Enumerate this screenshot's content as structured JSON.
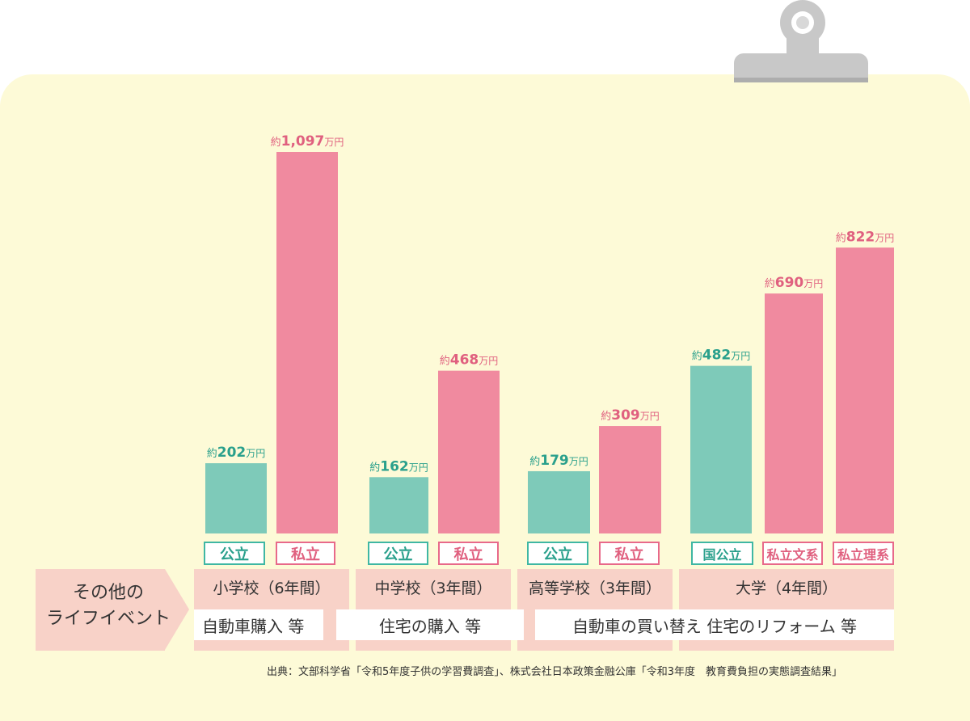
{
  "chart_data": {
    "type": "bar",
    "title": "",
    "xlabel": "",
    "ylabel": "",
    "ylim": [
      0,
      1097
    ],
    "unit_prefix": "約",
    "unit_suffix": "万円",
    "bars": [
      {
        "label": "公立",
        "value": 202,
        "display": "202",
        "kind": "public",
        "group": 0
      },
      {
        "label": "私立",
        "value": 1097,
        "display": "1,097",
        "kind": "private",
        "group": 0
      },
      {
        "label": "公立",
        "value": 162,
        "display": "162",
        "kind": "public",
        "group": 1
      },
      {
        "label": "私立",
        "value": 468,
        "display": "468",
        "kind": "private",
        "group": 1
      },
      {
        "label": "公立",
        "value": 179,
        "display": "179",
        "kind": "public",
        "group": 2
      },
      {
        "label": "私立",
        "value": 309,
        "display": "309",
        "kind": "private",
        "group": 2
      },
      {
        "label": "国公立",
        "value": 482,
        "display": "482",
        "kind": "public",
        "group": 3
      },
      {
        "label": "私立文系",
        "value": 690,
        "display": "690",
        "kind": "private",
        "group": 3
      },
      {
        "label": "私立理系",
        "value": 822,
        "display": "822",
        "kind": "private",
        "group": 3
      }
    ],
    "groups": [
      "小学校（6年間）",
      "中学校（3年間）",
      "高等学校（3年間）",
      "大学（4年間）"
    ]
  },
  "colors": {
    "public": "#7ecab9",
    "private": "#f08a9f",
    "public_text": "#2aa08c",
    "private_text": "#e0607f",
    "board": "#fdfad7",
    "band": "#f8d2c8"
  },
  "life_events": {
    "label_line1": "その他の",
    "label_line2": "ライフイベント",
    "items": [
      "自動車購入 等",
      "住宅の購入 等",
      "自動車の買い替え 住宅のリフォーム 等"
    ]
  },
  "source": "出典：文部科学省「令和5年度子供の学習費調査」、株式会社日本政策金融公庫「令和3年度　教育費負担の実態調査結果」"
}
